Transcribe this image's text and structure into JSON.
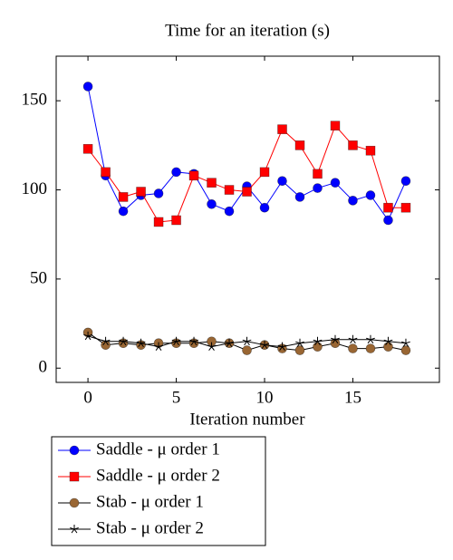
{
  "chart_data": {
    "type": "line",
    "title": "Time for an iteration (s)",
    "x_label": "Iteration number",
    "x": [
      0,
      1,
      2,
      3,
      4,
      5,
      6,
      7,
      8,
      9,
      10,
      11,
      12,
      13,
      14,
      15,
      16,
      17,
      18
    ],
    "xlim": [
      -1.8,
      19.9
    ],
    "xticks": [
      0,
      5,
      10,
      15
    ],
    "ylim": [
      -8,
      175
    ],
    "yticks": [
      0,
      50,
      100,
      150
    ],
    "legend": "below",
    "series": [
      {
        "name": "Saddle - μ order 1",
        "color": "#0000ff",
        "marker": "circle",
        "values": [
          158,
          108,
          88,
          97,
          98,
          110,
          109,
          92,
          88,
          102,
          90,
          105,
          96,
          101,
          104,
          94,
          97,
          83,
          105
        ]
      },
      {
        "name": "Saddle - μ order 2",
        "color": "#ff0000",
        "marker": "square",
        "values": [
          123,
          110,
          96,
          99,
          82,
          83,
          108,
          104,
          100,
          99,
          110,
          134,
          125,
          109,
          136,
          125,
          122,
          90,
          90
        ]
      },
      {
        "name": "Stab - μ order 1",
        "color": "#996633",
        "marker": "circle",
        "values": [
          20,
          13,
          14,
          13,
          14,
          14,
          14,
          15,
          14,
          10,
          13,
          11,
          10,
          12,
          14,
          11,
          11,
          12,
          10
        ]
      },
      {
        "name": "Stab - μ order 2",
        "color": "#000000",
        "marker": "star",
        "values": [
          18,
          15,
          15,
          14,
          12,
          15,
          15,
          12,
          14,
          15,
          13,
          12,
          14,
          15,
          16,
          16,
          16,
          15,
          14
        ]
      }
    ]
  }
}
